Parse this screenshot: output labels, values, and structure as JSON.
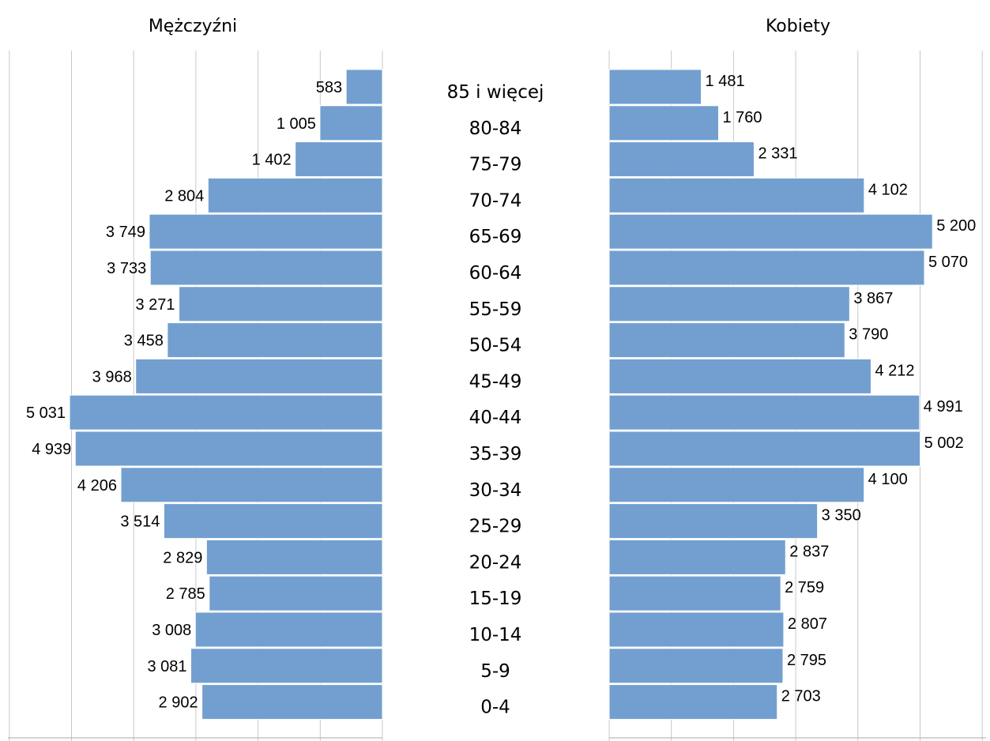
{
  "chart_data": {
    "type": "bar",
    "orientation": "horizontal",
    "layout": "population-pyramid",
    "categories": [
      "85 i więcej",
      "80-84",
      "75-79",
      "70-74",
      "65-69",
      "60-64",
      "55-59",
      "50-54",
      "45-49",
      "40-44",
      "35-39",
      "30-34",
      "25-29",
      "20-24",
      "15-19",
      "10-14",
      "5-9",
      "0-4"
    ],
    "series": [
      {
        "name": "Mężczyźni",
        "values": [
          583,
          1005,
          1402,
          2804,
          3749,
          3733,
          3271,
          3458,
          3968,
          5031,
          4939,
          4206,
          3514,
          2829,
          2785,
          3008,
          3081,
          2902
        ],
        "labels": [
          "583",
          "1 005",
          "1 402",
          "2 804",
          "3 749",
          "3 733",
          "3 271",
          "3 458",
          "3 968",
          "5 031",
          "4 939",
          "4 206",
          "3 514",
          "2 829",
          "2 785",
          "3 008",
          "3 081",
          "2 902"
        ]
      },
      {
        "name": "Kobiety",
        "values": [
          1481,
          1760,
          2331,
          4102,
          5200,
          5070,
          3867,
          3790,
          4212,
          4991,
          5002,
          4100,
          3350,
          2837,
          2759,
          2807,
          2795,
          2703
        ],
        "labels": [
          "1 481",
          "1 760",
          "2 331",
          "4 102",
          "5 200",
          "5 070",
          "3 867",
          "3 790",
          "4 212",
          "4 991",
          "5 002",
          "4 100",
          "3 350",
          "2 837",
          "2 759",
          "2 807",
          "2 795",
          "2 703"
        ]
      }
    ],
    "xlim": [
      0,
      6000
    ],
    "x_grid_step": 1000,
    "grid": "vertical",
    "tick_labels_shown": false,
    "colors": {
      "bar": "#729fcf",
      "grid": "#c8c8c8"
    }
  }
}
